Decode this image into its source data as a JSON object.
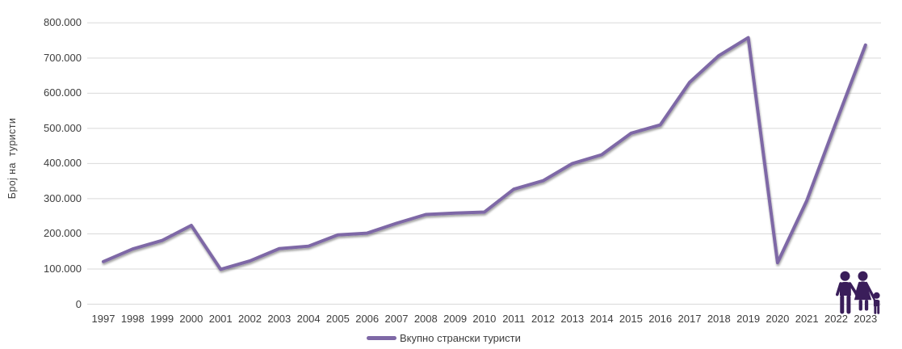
{
  "chart_data": {
    "type": "line",
    "title": "",
    "x": [
      "1997",
      "1998",
      "1999",
      "2000",
      "2001",
      "2002",
      "2003",
      "2004",
      "2005",
      "2006",
      "2007",
      "2008",
      "2009",
      "2010",
      "2011",
      "2012",
      "2013",
      "2014",
      "2015",
      "2016",
      "2017",
      "2018",
      "2019",
      "2020",
      "2021",
      "2022",
      "2023"
    ],
    "series": [
      {
        "name": "Вкупно странски туристи",
        "values": [
          121000,
          157000,
          181000,
          224000,
          99000,
          123000,
          158000,
          165000,
          197000,
          202000,
          230000,
          255000,
          259000,
          262000,
          327000,
          351000,
          400000,
          425000,
          486000,
          510000,
          631000,
          707000,
          758000,
          118000,
          295000,
          518000,
          737000
        ]
      }
    ],
    "xlabel": "",
    "ylabel": "Број на  туристи",
    "ylim": [
      0,
      800000
    ],
    "ytick_step": 100000,
    "ytick_labels": [
      "0",
      "100.000",
      "200.000",
      "300.000",
      "400.000",
      "500.000",
      "600.000",
      "700.000",
      "800.000"
    ],
    "grid": true,
    "legend_position": "bottom"
  },
  "legend": {
    "label": "Вкупно странски туристи"
  },
  "icons": {
    "family": "family-icon"
  },
  "colors": {
    "line": "#7E68A6",
    "grid": "#D9D9D9",
    "text": "#3D3D3D",
    "icon": "#3A1E5A",
    "background": "#FFFFFF"
  }
}
